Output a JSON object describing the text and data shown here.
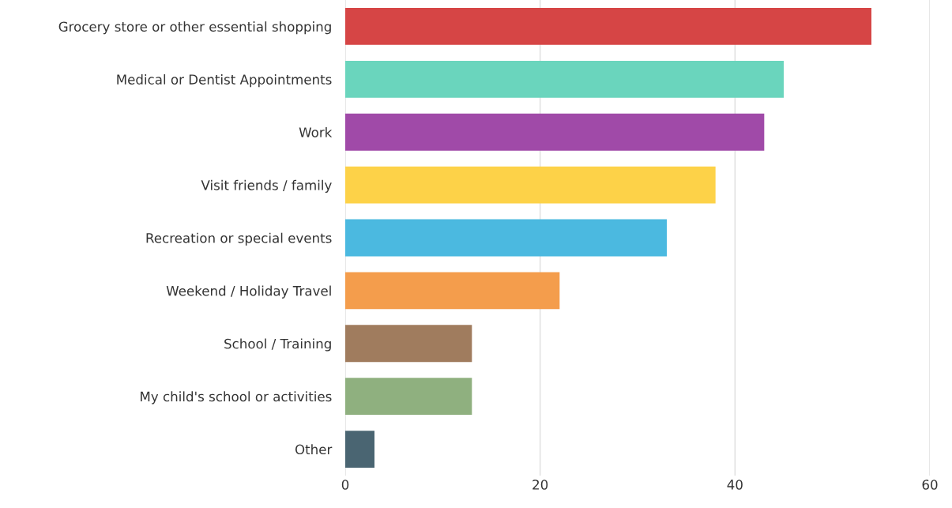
{
  "chart_data": {
    "type": "bar",
    "orientation": "horizontal",
    "categories": [
      "Grocery store or other essential shopping",
      "Medical or Dentist Appointments",
      "Work",
      "Visit friends / family",
      "Recreation or special events",
      "Weekend / Holiday Travel",
      "School / Training",
      "My child's school or activities",
      "Other"
    ],
    "values": [
      54,
      45,
      43,
      38,
      33,
      22,
      13,
      13,
      3
    ],
    "colors": [
      "#d64545",
      "#6ad5bd",
      "#a04aa8",
      "#fdd248",
      "#4bb9e0",
      "#f49d4c",
      "#a07c5e",
      "#8fb07f",
      "#4a6572"
    ],
    "xlim": [
      0,
      60
    ],
    "xticks": [
      0,
      20,
      40,
      60
    ],
    "grid": "x",
    "legend": false
  }
}
